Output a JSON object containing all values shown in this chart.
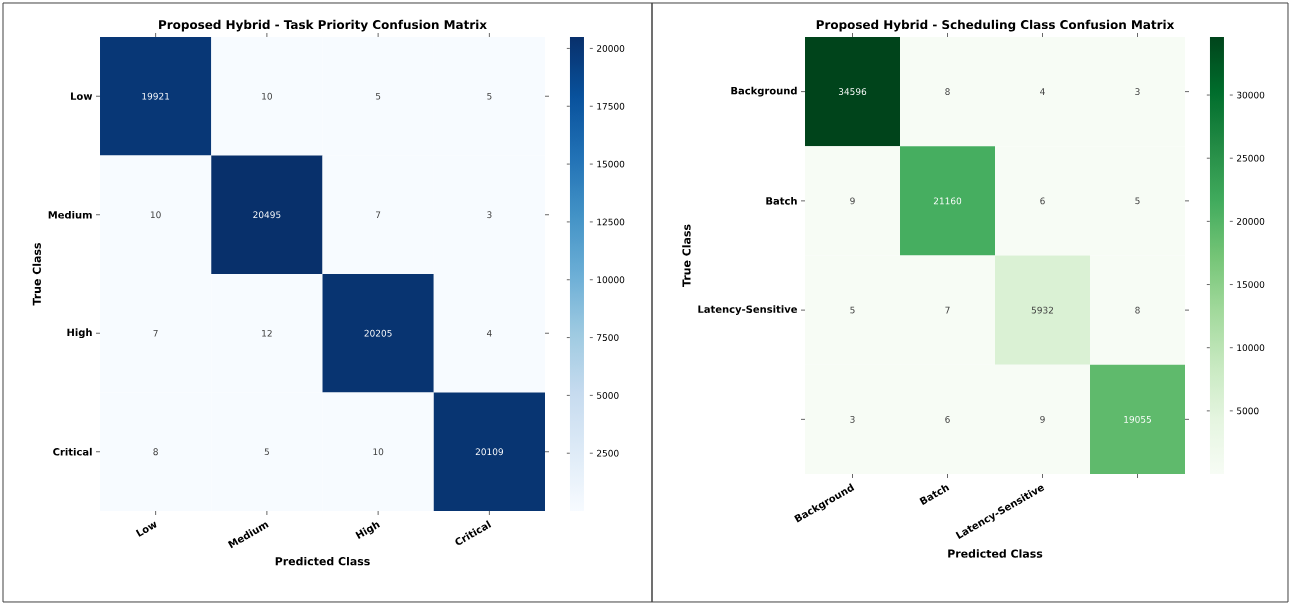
{
  "chart_data": [
    {
      "type": "heatmap",
      "title": "Proposed Hybrid - Task Priority Confusion Matrix",
      "xlabel": "Predicted Class",
      "ylabel": "True Class",
      "categories": [
        "Low",
        "Medium",
        "High",
        "Critical"
      ],
      "y_categories": [
        "Low",
        "Medium",
        "High",
        "Critical"
      ],
      "cells": [
        [
          19921,
          10,
          5,
          5
        ],
        [
          10,
          20495,
          7,
          3
        ],
        [
          7,
          12,
          20205,
          4
        ],
        [
          8,
          5,
          10,
          20109
        ]
      ],
      "data_labels": true,
      "color": "#08306b",
      "clim": [
        3,
        20495
      ],
      "cticks": [
        2500,
        5000,
        7500,
        10000,
        12500,
        15000,
        17500,
        20000
      ]
    },
    {
      "type": "heatmap",
      "title": "Proposed Hybrid - Scheduling Class Confusion Matrix",
      "xlabel": "Predicted Class",
      "ylabel": "True Class",
      "categories": [
        "Background",
        "Batch",
        "Latency-Sensitive",
        null
      ],
      "y_categories": [
        "Background",
        "Batch",
        "Latency-Sensitive",
        null
      ],
      "cells": [
        [
          34596,
          8,
          4,
          3
        ],
        [
          9,
          21160,
          6,
          5
        ],
        [
          5,
          7,
          5932,
          8
        ],
        [
          3,
          6,
          9,
          19055
        ]
      ],
      "data_labels": true,
      "color": "#00441b",
      "clim": [
        3,
        34596
      ],
      "cticks": [
        5000,
        10000,
        15000,
        20000,
        25000,
        30000
      ]
    }
  ]
}
